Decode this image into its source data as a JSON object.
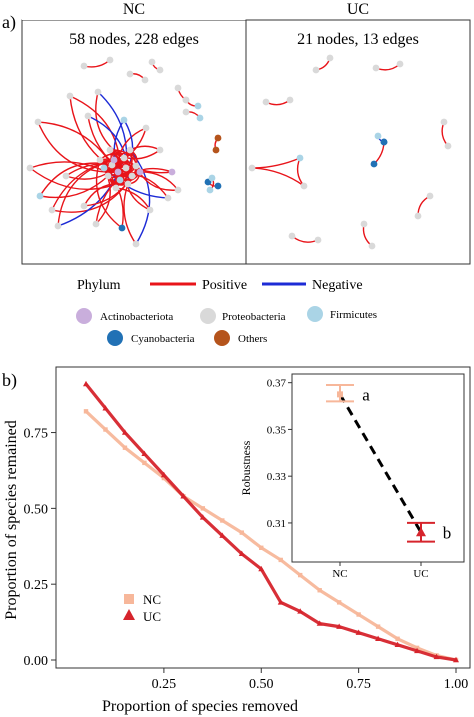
{
  "panel_a": {
    "label": "a)",
    "networks": [
      {
        "name": "NC",
        "summary": "58 nodes, 228 edges"
      },
      {
        "name": "UC",
        "summary": "21 nodes, 13 edges"
      }
    ],
    "legend": {
      "phylum_title": "Phylum",
      "positive_label": "Positive",
      "negative_label": "Negative",
      "positive_color": "#e8141a",
      "negative_color": "#1d2bd6",
      "phyla": [
        {
          "name": "Actinobacteriota",
          "color": "#c9aedc"
        },
        {
          "name": "Proteobacteria",
          "color": "#d9d9d9"
        },
        {
          "name": "Firmicutes",
          "color": "#aad4e6"
        },
        {
          "name": "Cyanobacteria",
          "color": "#2171b5"
        },
        {
          "name": "Others",
          "color": "#b5541c"
        }
      ]
    }
  },
  "panel_b": {
    "label": "b)",
    "chart_data": [
      {
        "type": "line",
        "xlabel": "Proportion of species removed",
        "ylabel": "Proportion of species remained",
        "xlim": [
          0.05,
          1.0
        ],
        "ylim": [
          0.0,
          0.92
        ],
        "x_ticks": [
          "0.25",
          "0.50",
          "0.75",
          "1.00"
        ],
        "x_tick_values": [
          0.25,
          0.5,
          0.75,
          1.0
        ],
        "y_ticks": [
          "0.00",
          "0.25",
          "0.50",
          "0.75"
        ],
        "y_tick_values": [
          0.0,
          0.25,
          0.5,
          0.75
        ],
        "legend_placement": "lower-left",
        "series": [
          {
            "name": "NC",
            "marker": "square",
            "color": "#f7b79a",
            "x": [
              0.05,
              0.1,
              0.15,
              0.2,
              0.25,
              0.3,
              0.35,
              0.4,
              0.45,
              0.5,
              0.55,
              0.6,
              0.65,
              0.7,
              0.75,
              0.8,
              0.85,
              0.9,
              0.95,
              1.0
            ],
            "y": [
              0.82,
              0.76,
              0.7,
              0.65,
              0.6,
              0.54,
              0.5,
              0.46,
              0.42,
              0.37,
              0.33,
              0.28,
              0.23,
              0.19,
              0.15,
              0.11,
              0.07,
              0.04,
              0.015,
              0.0
            ]
          },
          {
            "name": "UC",
            "marker": "triangle",
            "color": "#d6242c",
            "x": [
              0.05,
              0.1,
              0.15,
              0.2,
              0.25,
              0.3,
              0.35,
              0.4,
              0.45,
              0.5,
              0.55,
              0.6,
              0.65,
              0.7,
              0.75,
              0.8,
              0.85,
              0.9,
              0.95,
              1.0
            ],
            "y": [
              0.91,
              0.83,
              0.75,
              0.68,
              0.61,
              0.54,
              0.47,
              0.41,
              0.35,
              0.3,
              0.19,
              0.16,
              0.12,
              0.11,
              0.09,
              0.07,
              0.05,
              0.03,
              0.01,
              0.0
            ]
          }
        ]
      },
      {
        "type": "scatter",
        "ylabel": "Robustness",
        "categories": [
          "NC",
          "UC"
        ],
        "ylim": [
          0.295,
          0.372
        ],
        "y_ticks": [
          "0.31",
          "0.33",
          "0.35",
          "0.37"
        ],
        "y_tick_values": [
          0.31,
          0.33,
          0.35,
          0.37
        ],
        "points": [
          {
            "category": "NC",
            "mean": 0.365,
            "low": 0.362,
            "high": 0.369,
            "marker": "square",
            "color": "#f7b79a",
            "letter": "a"
          },
          {
            "category": "UC",
            "mean": 0.306,
            "low": 0.302,
            "high": 0.31,
            "marker": "triangle",
            "color": "#d6242c",
            "letter": "b"
          }
        ],
        "connector": "dashed"
      }
    ]
  }
}
